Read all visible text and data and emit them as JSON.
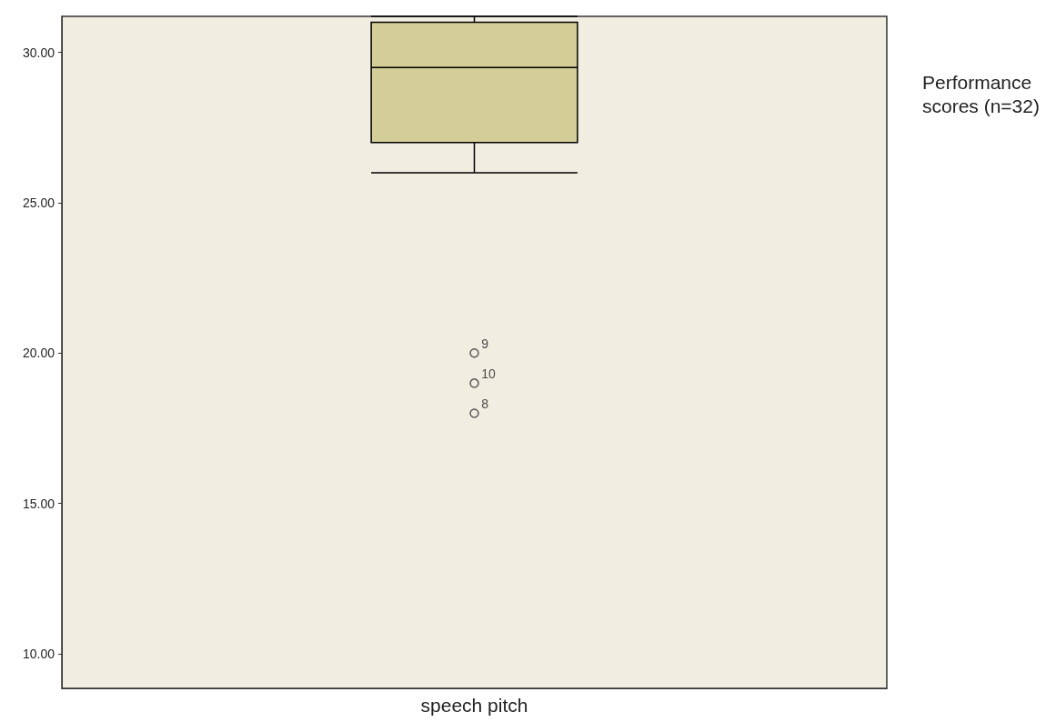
{
  "chart_data": {
    "type": "box",
    "title": "Performance scores (n=32)",
    "categories": [
      "speech pitch"
    ],
    "boxes": [
      {
        "low": 26,
        "q1": 27,
        "median": 29.5,
        "q3": 31,
        "high": 31.2,
        "outliers": [
          20,
          19,
          18
        ]
      }
    ],
    "color": "#d3cd97",
    "ylim": [
      8.85,
      31.2
    ],
    "yticks": [
      {
        "value": 10,
        "label": "10.00"
      },
      {
        "value": 15,
        "label": "15.00"
      },
      {
        "value": 20,
        "label": "20.00"
      },
      {
        "value": 25,
        "label": "25.00"
      },
      {
        "value": 30,
        "label": "30.00"
      }
    ],
    "grid": false,
    "annotations": [
      "9",
      "10",
      "8"
    ]
  }
}
